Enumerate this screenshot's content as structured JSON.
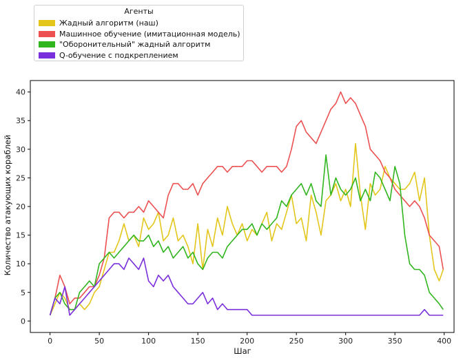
{
  "legend": {
    "title": "Агенты",
    "placement": "top-left, outside plot"
  },
  "colors": {
    "greedy": "#e3c619",
    "ml": "#ec5050",
    "defensive": "#30b51e",
    "qlearn": "#7a2fdc"
  },
  "chart_data": {
    "type": "line",
    "title": "",
    "xlabel": "Шаг",
    "ylabel": "Количество атакующих кораблей",
    "xlim": [
      -20,
      410
    ],
    "ylim": [
      -2,
      42
    ],
    "xticks": [
      0,
      50,
      100,
      150,
      200,
      250,
      300,
      350,
      400
    ],
    "yticks": [
      0,
      5,
      10,
      15,
      20,
      25,
      30,
      35,
      40
    ],
    "grid": false,
    "legend_loc": "upper left (outside)",
    "series": [
      {
        "name": "Жадный алгоритм (наш)",
        "color": "#e3c619",
        "x": [
          0,
          5,
          10,
          15,
          20,
          25,
          30,
          35,
          40,
          45,
          50,
          55,
          60,
          65,
          70,
          75,
          80,
          85,
          90,
          95,
          100,
          105,
          110,
          115,
          120,
          125,
          130,
          135,
          140,
          145,
          150,
          155,
          160,
          165,
          170,
          175,
          180,
          185,
          190,
          195,
          200,
          205,
          210,
          215,
          220,
          225,
          230,
          235,
          240,
          245,
          250,
          255,
          260,
          265,
          270,
          275,
          280,
          285,
          290,
          295,
          300,
          305,
          310,
          315,
          320,
          325,
          330,
          335,
          340,
          345,
          350,
          355,
          360,
          365,
          370,
          375,
          380,
          385,
          390,
          395,
          399
        ],
        "values": [
          1,
          3,
          5,
          4,
          2,
          2,
          3,
          2,
          3,
          5,
          6,
          9,
          12,
          12,
          14,
          17,
          14,
          15,
          13,
          18,
          16,
          17,
          19,
          14,
          15,
          18,
          14,
          15,
          13,
          10,
          17,
          9,
          16,
          13,
          18,
          15,
          20,
          17,
          15,
          17,
          14,
          16,
          15,
          17,
          19,
          14,
          17,
          16,
          19,
          22,
          17,
          18,
          14,
          22,
          19,
          15,
          21,
          22,
          24,
          21,
          23,
          20,
          31,
          22,
          16,
          24,
          22,
          23,
          27,
          25,
          24,
          23,
          23,
          24,
          26,
          21,
          25,
          15,
          9,
          7,
          9
        ]
      },
      {
        "name": "Машинное обучение (имитационная модель)",
        "color": "#ec5050",
        "x": [
          0,
          5,
          10,
          15,
          20,
          25,
          30,
          35,
          40,
          45,
          50,
          55,
          60,
          65,
          70,
          75,
          80,
          85,
          90,
          95,
          100,
          105,
          110,
          115,
          120,
          125,
          130,
          135,
          140,
          145,
          150,
          155,
          160,
          165,
          170,
          175,
          180,
          185,
          190,
          195,
          200,
          205,
          210,
          215,
          220,
          225,
          230,
          235,
          240,
          245,
          250,
          255,
          260,
          265,
          270,
          275,
          280,
          285,
          290,
          295,
          300,
          305,
          310,
          315,
          320,
          325,
          330,
          335,
          340,
          345,
          350,
          355,
          360,
          365,
          370,
          375,
          380,
          385,
          390,
          395,
          399
        ],
        "values": [
          1,
          4,
          8,
          6,
          3,
          4,
          4,
          5,
          6,
          6,
          8,
          11,
          18,
          19,
          19,
          18,
          19,
          19,
          20,
          19,
          21,
          20,
          19,
          18,
          22,
          24,
          24,
          23,
          23,
          24,
          22,
          24,
          25,
          26,
          27,
          27,
          26,
          27,
          27,
          27,
          28,
          28,
          27,
          26,
          27,
          27,
          27,
          26,
          27,
          30,
          34,
          35,
          33,
          32,
          31,
          33,
          35,
          37,
          38,
          40,
          38,
          39,
          38,
          36,
          34,
          30,
          29,
          28,
          26,
          25,
          23,
          22,
          21,
          20,
          21,
          20,
          18,
          15,
          14,
          13,
          9
        ]
      },
      {
        "name": "\"Оборонительный\" жадный алгоритм",
        "color": "#30b51e",
        "x": [
          0,
          5,
          10,
          15,
          20,
          25,
          30,
          35,
          40,
          45,
          50,
          55,
          60,
          65,
          70,
          75,
          80,
          85,
          90,
          95,
          100,
          105,
          110,
          115,
          120,
          125,
          130,
          135,
          140,
          145,
          150,
          155,
          160,
          165,
          170,
          175,
          180,
          185,
          190,
          195,
          200,
          205,
          210,
          215,
          220,
          225,
          230,
          235,
          240,
          245,
          250,
          255,
          260,
          265,
          270,
          275,
          280,
          285,
          290,
          295,
          300,
          305,
          310,
          315,
          320,
          325,
          330,
          335,
          340,
          345,
          350,
          355,
          360,
          365,
          370,
          375,
          380,
          385,
          390,
          395,
          399
        ],
        "values": [
          1,
          4,
          5,
          3,
          2,
          2,
          5,
          6,
          7,
          6,
          10,
          11,
          12,
          11,
          12,
          13,
          14,
          15,
          14,
          14,
          15,
          13,
          14,
          12,
          13,
          11,
          12,
          13,
          11,
          12,
          10,
          9,
          11,
          12,
          12,
          11,
          13,
          14,
          15,
          16,
          16,
          17,
          15,
          17,
          16,
          17,
          18,
          21,
          20,
          22,
          23,
          24,
          22,
          24,
          21,
          20,
          29,
          22,
          25,
          23,
          22,
          23,
          25,
          21,
          23,
          21,
          26,
          25,
          23,
          21,
          27,
          24,
          15,
          10,
          9,
          9,
          8,
          5,
          4,
          3,
          2
        ]
      },
      {
        "name": "Q-обучение с подкреплением",
        "color": "#7a2fdc",
        "x": [
          0,
          5,
          10,
          15,
          20,
          25,
          30,
          35,
          40,
          45,
          50,
          55,
          60,
          65,
          70,
          75,
          80,
          85,
          90,
          95,
          100,
          105,
          110,
          115,
          120,
          125,
          130,
          135,
          140,
          145,
          150,
          155,
          160,
          165,
          170,
          175,
          180,
          185,
          190,
          195,
          200,
          205,
          210,
          215,
          220,
          225,
          230,
          235,
          240,
          245,
          250,
          255,
          260,
          265,
          270,
          275,
          280,
          285,
          290,
          295,
          300,
          305,
          310,
          315,
          320,
          325,
          330,
          335,
          340,
          345,
          350,
          355,
          360,
          365,
          370,
          375,
          380,
          385,
          390,
          395,
          399
        ],
        "values": [
          1,
          4,
          3,
          6,
          1,
          2,
          3,
          4,
          5,
          6,
          7,
          8,
          9,
          10,
          10,
          9,
          11,
          10,
          9,
          11,
          7,
          6,
          8,
          7,
          8,
          6,
          5,
          4,
          3,
          3,
          4,
          5,
          3,
          4,
          2,
          3,
          2,
          2,
          2,
          2,
          2,
          1,
          1,
          1,
          1,
          1,
          1,
          1,
          1,
          1,
          1,
          1,
          1,
          1,
          1,
          1,
          1,
          1,
          1,
          1,
          1,
          1,
          1,
          1,
          1,
          1,
          1,
          1,
          1,
          1,
          1,
          1,
          1,
          1,
          1,
          1,
          2,
          1,
          1,
          1,
          1
        ]
      }
    ]
  }
}
